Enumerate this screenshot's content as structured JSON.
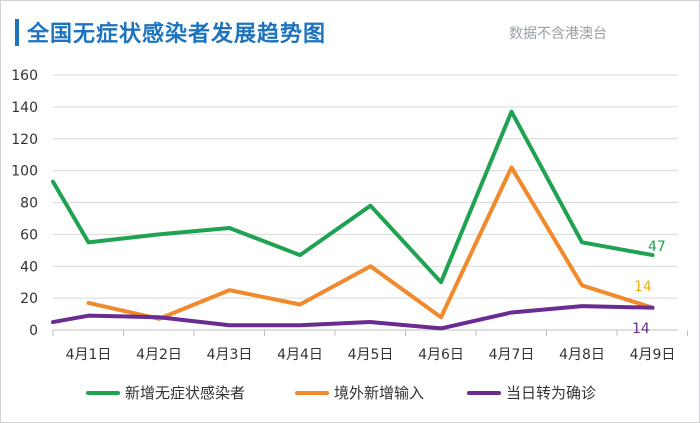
{
  "header": {
    "title": "全国无症状感染者发展趋势图",
    "note": "数据不含港澳台"
  },
  "chart_data": {
    "type": "line",
    "title": "全国无症状感染者发展趋势图",
    "categories": [
      "4月1日",
      "4月2日",
      "4月3日",
      "4月4日",
      "4月5日",
      "4月6日",
      "4月7日",
      "4月8日",
      "4月9日"
    ],
    "ylim": [
      0,
      160
    ],
    "yticks": [
      0,
      20,
      40,
      60,
      80,
      100,
      120,
      140,
      160
    ],
    "grid": true,
    "legend_position": "bottom",
    "series": [
      {
        "name": "新增无症状感染者",
        "color": "#1fa352",
        "leading": 93,
        "values": [
          55,
          60,
          64,
          47,
          78,
          30,
          137,
          55,
          47
        ]
      },
      {
        "name": "境外新增输入",
        "color": "#f08a2c",
        "leading": null,
        "values": [
          17,
          7,
          25,
          16,
          40,
          8,
          102,
          28,
          14
        ]
      },
      {
        "name": "当日转为确诊",
        "color": "#6a2c91",
        "leading": 5,
        "values": [
          9,
          8,
          3,
          3,
          5,
          1,
          11,
          15,
          14
        ]
      }
    ],
    "data_labels": [
      {
        "series": 0,
        "text": "47"
      },
      {
        "series": 1,
        "text": "14"
      },
      {
        "series": 2,
        "text": "14"
      }
    ]
  }
}
